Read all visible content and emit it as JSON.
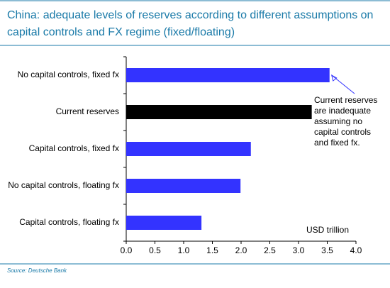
{
  "chart_data": {
    "type": "barh",
    "title": [
      "China: adequate levels of reserves according to different assumptions on",
      "capital controls and FX regime (fixed/floating)"
    ],
    "categories": [
      "No capital controls, fixed fx",
      "Current reserves",
      "Capital controls, fixed fx",
      "No capital controls, floating fx",
      "Capital controls, floating fx"
    ],
    "values": [
      3.54,
      3.23,
      2.17,
      1.99,
      1.31
    ],
    "colors": [
      "#3333ff",
      "#000000",
      "#3333ff",
      "#3333ff",
      "#3333ff"
    ],
    "xlim": [
      0,
      4
    ],
    "xticks": [
      {
        "value": 0,
        "label": "0.0"
      },
      {
        "value": 0.5,
        "label": "0.5"
      },
      {
        "value": 1,
        "label": "1.0"
      },
      {
        "value": 1.5,
        "label": "1.5"
      },
      {
        "value": 2,
        "label": "2.0"
      },
      {
        "value": 2.5,
        "label": "2.5"
      },
      {
        "value": 3,
        "label": "3.0"
      },
      {
        "value": 3.5,
        "label": "3.5"
      },
      {
        "value": 4,
        "label": "4.0"
      }
    ],
    "xlabel": "USD trillion",
    "annotation": [
      "Current reserves",
      "are inadequate",
      "assuming no",
      "capital controls",
      "and fixed fx."
    ],
    "source": "Source: Deutsche Bank"
  }
}
